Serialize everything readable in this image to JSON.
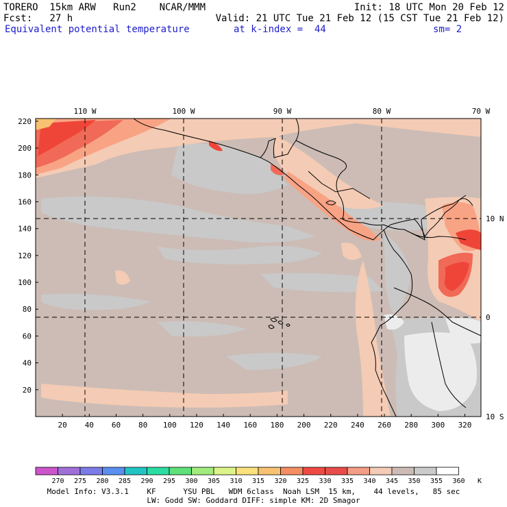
{
  "header": {
    "model": "TORERO  15km ARW   Run2    NCAR/MMM",
    "init": "Init: 18 UTC Mon 20 Feb 12",
    "forecast": "Fcst:   27 h",
    "valid": "Valid: 21 UTC Tue 21 Feb 12 (15 CST Tue 21 Feb 12)",
    "field": "Equivalent potential temperature",
    "level": "at k-index =  44",
    "smoothing": "sm= 2"
  },
  "map": {
    "longitude_labels": [
      "110 W",
      "100 W",
      "90 W",
      "80 W",
      "70 W"
    ],
    "latitude_labels": [
      "10 N",
      "0",
      "10 S"
    ],
    "x_grid_ticks": [
      "20",
      "40",
      "60",
      "80",
      "100",
      "120",
      "140",
      "160",
      "180",
      "200",
      "220",
      "240",
      "260",
      "280",
      "300",
      "320"
    ],
    "y_grid_ticks": [
      "20",
      "40",
      "60",
      "80",
      "100",
      "120",
      "140",
      "160",
      "180",
      "200",
      "220"
    ],
    "colors": {
      "background": "#ccbcb5",
      "sea_gray": "#c9c9c9",
      "warm_light": "#f4cbb4",
      "warm_mid": "#f9a385",
      "warm_strong": "#f06a57",
      "warm_red": "#ef4539",
      "land_white": "#ececec"
    }
  },
  "legend": {
    "labels": [
      "270",
      "275",
      "280",
      "285",
      "290",
      "295",
      "300",
      "305",
      "310",
      "315",
      "320",
      "325",
      "330",
      "335",
      "340",
      "345",
      "350",
      "355",
      "360"
    ],
    "unit": "K",
    "colors": [
      "#cc55cc",
      "#a070d8",
      "#7c7ce8",
      "#5a8ef0",
      "#22c4c4",
      "#2cdca2",
      "#5ee07a",
      "#a2ec7e",
      "#dcf488",
      "#fae17c",
      "#f8c272",
      "#f58e62",
      "#ef4a42",
      "#e84c4a",
      "#f59c86",
      "#f3cbb6",
      "#ccbcb5",
      "#cbcbcb",
      "#ffffff"
    ]
  },
  "footer": {
    "line1": "Model Info: V3.3.1    KF      YSU PBL   WDM 6class  Noah LSM  15 km,    44 levels,   85 sec",
    "line2": "LW: Godd SW: Goddard DIFF: simple KM: 2D Smagor"
  }
}
